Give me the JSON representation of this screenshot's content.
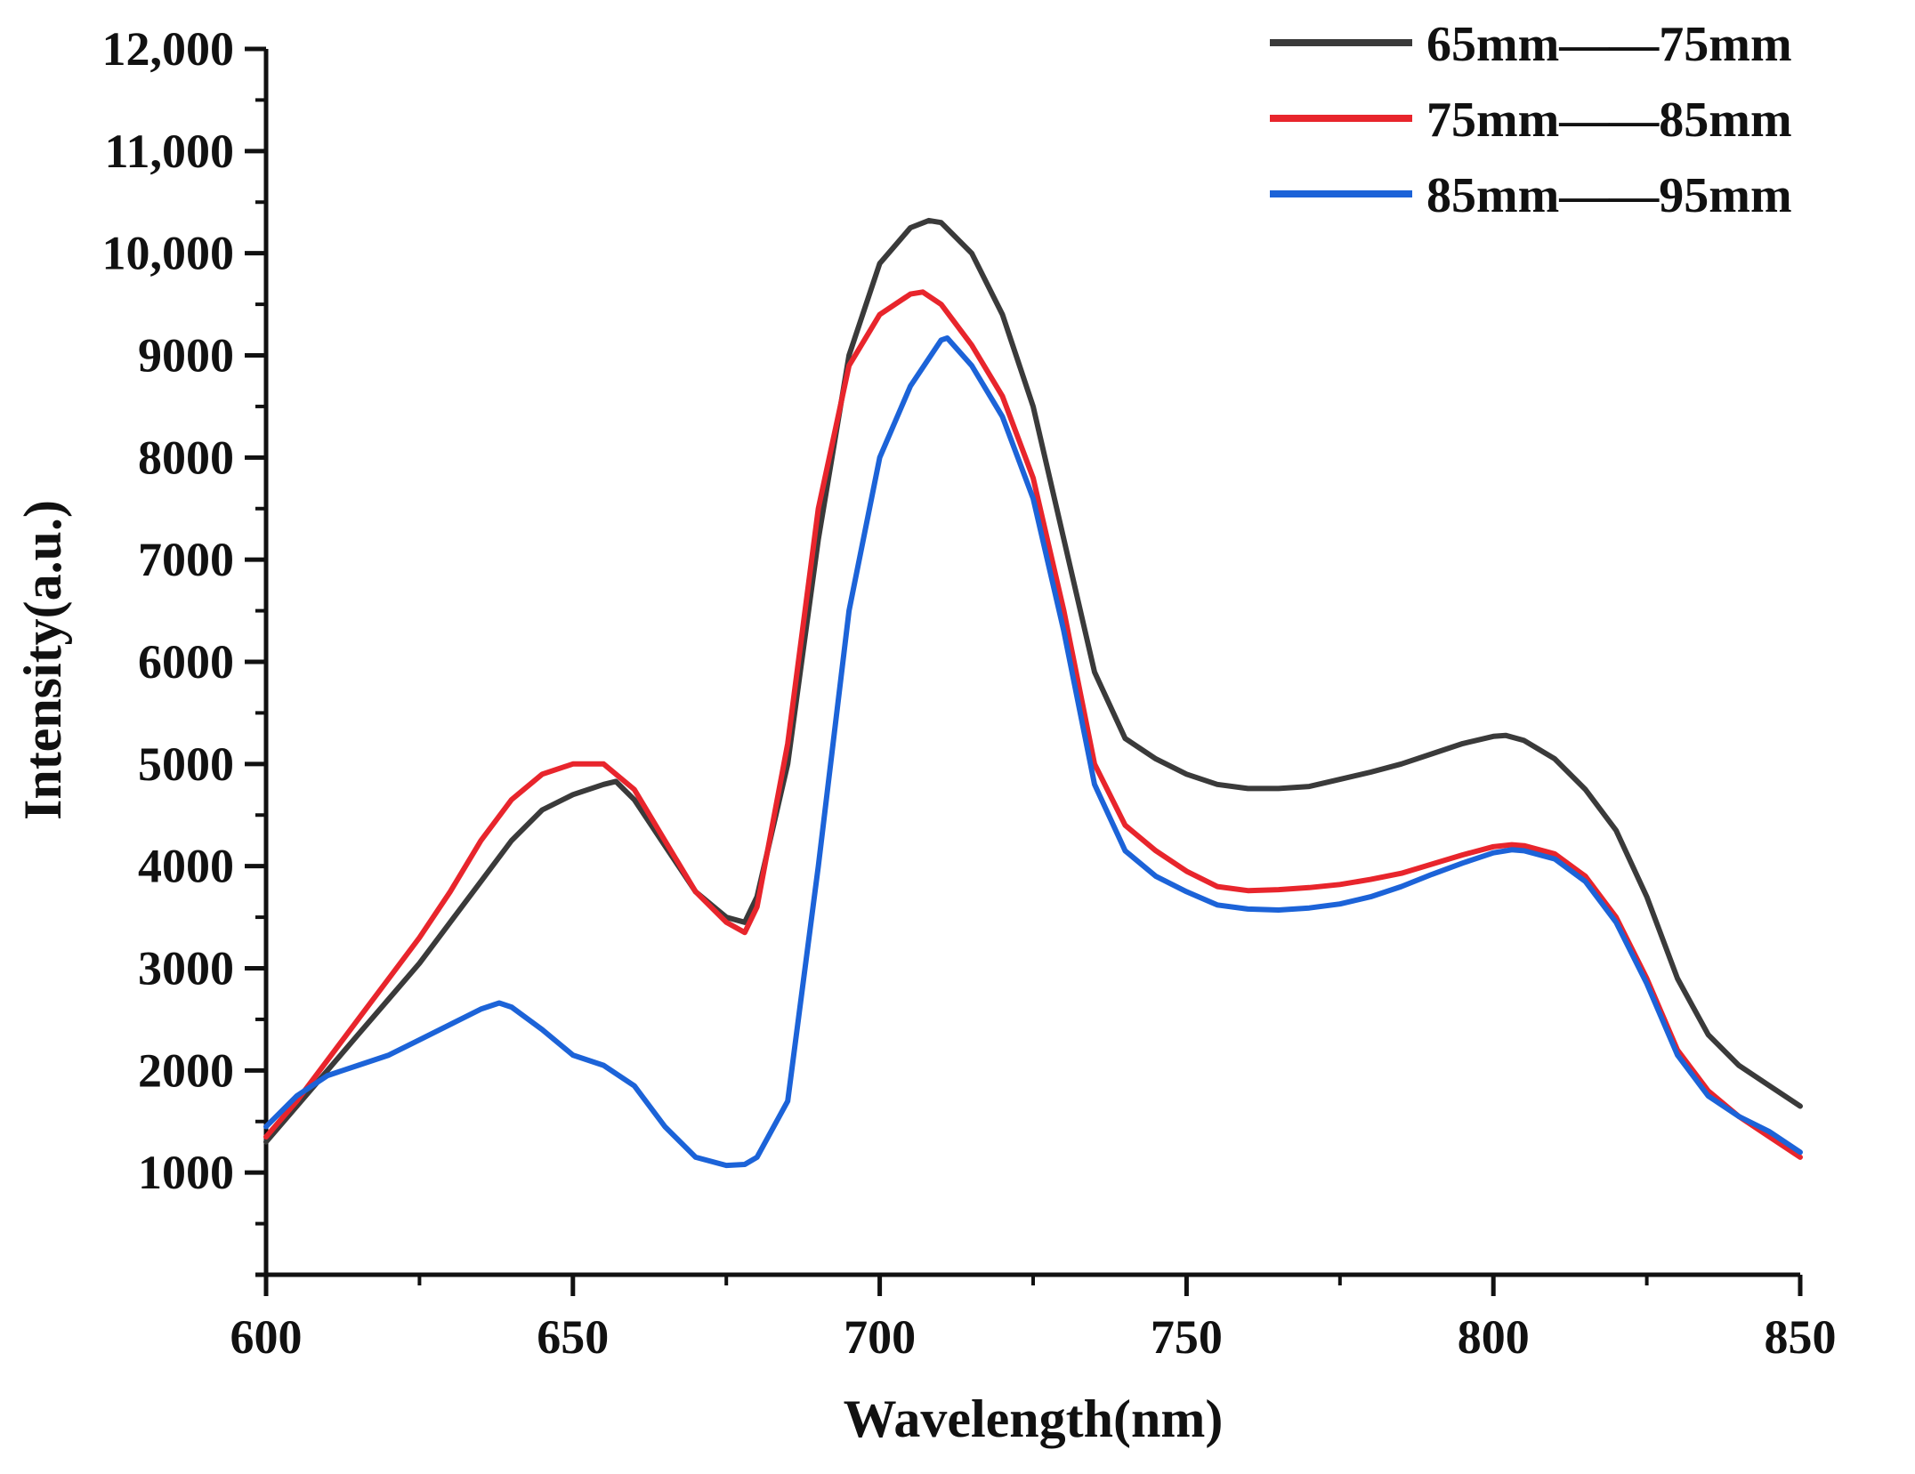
{
  "chart_data": {
    "type": "line",
    "title": "",
    "xlabel": "Wavelength(nm)",
    "ylabel": "Intensity(a.u.)",
    "xlim": [
      600,
      850
    ],
    "ylim": [
      0,
      12000
    ],
    "x_ticks": [
      600,
      650,
      700,
      750,
      800,
      850
    ],
    "x_tick_labels": [
      "600",
      "650",
      "700",
      "750",
      "800",
      "850"
    ],
    "y_ticks": [
      1000,
      2000,
      3000,
      4000,
      5000,
      6000,
      7000,
      8000,
      9000,
      10000,
      11000,
      12000
    ],
    "y_tick_labels": [
      "1000",
      "2000",
      "3000",
      "4000",
      "5000",
      "6000",
      "7000",
      "8000",
      "9000",
      "10,000",
      "11,000",
      "12,000"
    ],
    "grid": false,
    "legend_position": "top-right",
    "series": [
      {
        "name": "65mm——75mm",
        "color": "#3a3a3a",
        "x": [
          600,
          605,
          610,
          615,
          620,
          625,
          630,
          635,
          640,
          645,
          650,
          655,
          657,
          660,
          665,
          670,
          675,
          678,
          680,
          685,
          690,
          695,
          700,
          705,
          708,
          710,
          715,
          720,
          725,
          730,
          735,
          740,
          745,
          750,
          755,
          760,
          765,
          770,
          775,
          780,
          785,
          790,
          795,
          800,
          802,
          805,
          810,
          815,
          820,
          825,
          830,
          835,
          840,
          845,
          850
        ],
        "values": [
          1300,
          1650,
          2000,
          2350,
          2700,
          3050,
          3450,
          3850,
          4250,
          4550,
          4700,
          4800,
          4830,
          4650,
          4200,
          3750,
          3500,
          3450,
          3700,
          5000,
          7200,
          9000,
          9900,
          10250,
          10320,
          10300,
          10000,
          9400,
          8500,
          7200,
          5900,
          5250,
          5050,
          4900,
          4800,
          4760,
          4760,
          4780,
          4850,
          4920,
          5000,
          5100,
          5200,
          5270,
          5280,
          5230,
          5050,
          4750,
          4350,
          3700,
          2900,
          2350,
          2050,
          1850,
          1650
        ]
      },
      {
        "name": "75mm——85mm",
        "color": "#e8252c",
        "x": [
          600,
          605,
          610,
          615,
          620,
          625,
          630,
          635,
          640,
          645,
          650,
          655,
          660,
          665,
          670,
          675,
          678,
          680,
          685,
          690,
          695,
          700,
          705,
          707,
          710,
          715,
          720,
          725,
          730,
          735,
          740,
          745,
          750,
          755,
          760,
          765,
          770,
          775,
          780,
          785,
          790,
          795,
          800,
          803,
          805,
          810,
          815,
          820,
          825,
          830,
          835,
          840,
          845,
          850
        ],
        "values": [
          1350,
          1700,
          2100,
          2500,
          2900,
          3300,
          3750,
          4250,
          4650,
          4900,
          5000,
          5000,
          4750,
          4250,
          3750,
          3450,
          3350,
          3600,
          5200,
          7500,
          8900,
          9400,
          9600,
          9620,
          9500,
          9100,
          8600,
          7800,
          6500,
          5000,
          4400,
          4150,
          3950,
          3800,
          3760,
          3770,
          3790,
          3820,
          3870,
          3930,
          4020,
          4110,
          4190,
          4210,
          4200,
          4120,
          3900,
          3500,
          2900,
          2200,
          1800,
          1550,
          1350,
          1150
        ]
      },
      {
        "name": "85mm——95mm",
        "color": "#1c63d8",
        "x": [
          600,
          605,
          610,
          615,
          620,
          625,
          630,
          635,
          638,
          640,
          645,
          650,
          655,
          660,
          665,
          670,
          675,
          678,
          680,
          685,
          690,
          695,
          700,
          705,
          710,
          711,
          715,
          720,
          725,
          730,
          735,
          740,
          745,
          750,
          755,
          760,
          765,
          770,
          775,
          780,
          785,
          790,
          795,
          800,
          803,
          805,
          810,
          815,
          820,
          825,
          830,
          835,
          840,
          845,
          850
        ],
        "values": [
          1450,
          1750,
          1950,
          2050,
          2150,
          2300,
          2450,
          2600,
          2660,
          2620,
          2400,
          2150,
          2050,
          1850,
          1450,
          1150,
          1070,
          1080,
          1150,
          1700,
          4000,
          6500,
          8000,
          8700,
          9150,
          9170,
          8900,
          8400,
          7600,
          6300,
          4800,
          4150,
          3900,
          3750,
          3620,
          3580,
          3570,
          3590,
          3630,
          3700,
          3800,
          3920,
          4030,
          4130,
          4160,
          4150,
          4070,
          3850,
          3450,
          2850,
          2150,
          1750,
          1550,
          1400,
          1200
        ]
      }
    ]
  }
}
